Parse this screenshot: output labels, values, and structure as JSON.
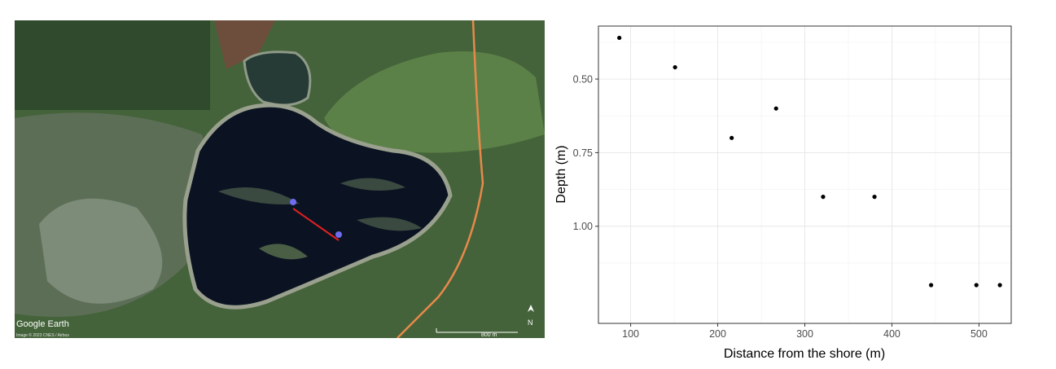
{
  "map": {
    "brand": "Google Earth",
    "credit": "Image © 2023 CNES / Airbus",
    "scale_label": "800 m",
    "north_label": "N",
    "colors": {
      "grass": "#3b5a32",
      "water": "#0b1322",
      "route": "#e8894a",
      "transect": "#e02020",
      "pin": "#6f6cf0"
    }
  },
  "chart_data": {
    "type": "scatter",
    "xlabel": "Distance from the shore (m)",
    "ylabel": "Depth (m)",
    "xlim": [
      63,
      537
    ],
    "ylim": [
      0.32,
      1.33
    ],
    "y_reversed": true,
    "x_ticks": [
      100,
      200,
      300,
      400,
      500
    ],
    "x_tick_labels": [
      "100",
      "200",
      "300",
      "400",
      "500"
    ],
    "y_ticks": [
      0.5,
      0.75,
      1.0
    ],
    "y_tick_labels": [
      "0.50",
      "0.75",
      "1.00"
    ],
    "grid": true,
    "point_color": "#000000",
    "points": [
      {
        "x": 87,
        "y": 0.36
      },
      {
        "x": 151,
        "y": 0.46
      },
      {
        "x": 216,
        "y": 0.7
      },
      {
        "x": 267,
        "y": 0.6
      },
      {
        "x": 321,
        "y": 0.9
      },
      {
        "x": 380,
        "y": 0.9
      },
      {
        "x": 445,
        "y": 1.2
      },
      {
        "x": 497,
        "y": 1.2
      },
      {
        "x": 524,
        "y": 1.2
      }
    ]
  }
}
